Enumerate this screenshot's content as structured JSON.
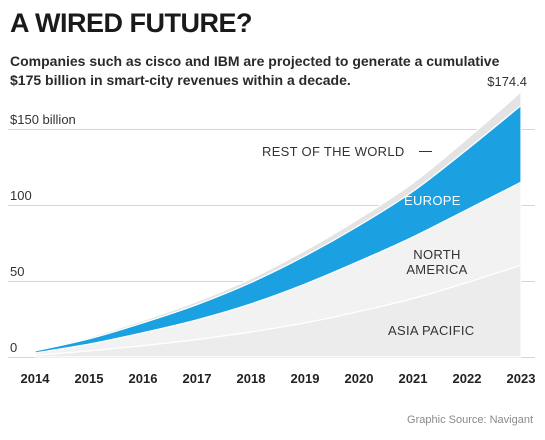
{
  "title": "A WIRED FUTURE?",
  "subtitle": "Companies such as cisco and IBM are projected to generate a cumulative $175 billion in smart-city revenues within a decade.",
  "source": "Graphic Source: Navigant",
  "colors": {
    "europe": "#1ba1e2",
    "rest_of_world": "#e3e3e3",
    "north_america": "#f2f2f2",
    "asia_pacific": "#ececec",
    "text_dark": "#222222",
    "text_light": "#ffffff"
  },
  "chart_data": {
    "type": "area",
    "stacked": true,
    "x": [
      2014,
      2015,
      2016,
      2017,
      2018,
      2019,
      2020,
      2021,
      2022,
      2023
    ],
    "xtick_labels": [
      "2014",
      "2015",
      "2016",
      "2017",
      "2018",
      "2019",
      "2020",
      "2021",
      "2022",
      "2023"
    ],
    "ytick_labels": [
      "0",
      "50",
      "100",
      "$150 billion"
    ],
    "yticks": [
      0,
      50,
      100,
      150
    ],
    "ylim": [
      0,
      180
    ],
    "end_total_label": "$174.4",
    "end_total": 174.4,
    "series": [
      {
        "name": "ASIA PACIFIC",
        "values": [
          1.2,
          4.0,
          7.5,
          11.5,
          16.5,
          22.5,
          30.0,
          38.5,
          49.0,
          60.5
        ]
      },
      {
        "name": "NORTH AMERICA",
        "values": [
          1.5,
          4.5,
          8.5,
          13.0,
          18.5,
          25.5,
          33.0,
          40.5,
          48.0,
          54.5
        ]
      },
      {
        "name": "EUROPE",
        "values": [
          1.3,
          3.5,
          6.5,
          10.0,
          14.0,
          18.5,
          23.5,
          30.0,
          39.5,
          50.5
        ]
      },
      {
        "name": "REST OF THE WORLD",
        "values": [
          0.5,
          1.0,
          1.5,
          2.0,
          2.5,
          3.5,
          4.5,
          5.5,
          7.0,
          8.9
        ]
      }
    ]
  }
}
